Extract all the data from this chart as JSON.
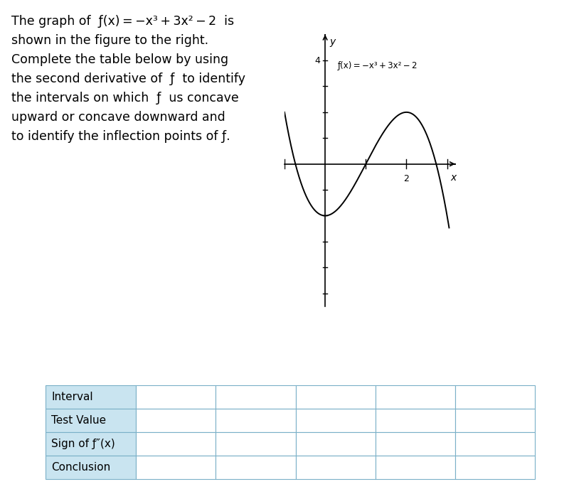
{
  "text_lines": [
    "The graph of  ƒ(x) = −x³ + 3x² − 2  is",
    "shown in the figure to the right.",
    "Complete the table below by using",
    "the second derivative of  ƒ  to identify",
    "the intervals on which  ƒ  us concave",
    "upward or concave downward and",
    "to identify the inflection points of ƒ."
  ],
  "graph_label": "ƒ(x) = −x³ + 3x² − 2",
  "table_row_labels": [
    "Interval",
    "Test Value",
    "Sign of ƒ″(x)",
    "Conclusion"
  ],
  "table_col_count": 5,
  "background_color": "#ffffff",
  "curve_color": "#000000",
  "axis_color": "#000000",
  "table_header_bg": "#c9e4f0",
  "table_border_color": "#7ab0c8",
  "font_size_text": 12.5,
  "font_size_table": 11,
  "x_range": [
    -1.0,
    3.2
  ],
  "y_range": [
    -5.5,
    5.0
  ],
  "x_tick": 2,
  "y_tick_label": 4,
  "x_ticks_minor": [
    -1,
    1,
    2,
    3
  ],
  "y_ticks_minor": [
    -5,
    -4,
    -3,
    -2,
    -1,
    1,
    2,
    3,
    4
  ]
}
